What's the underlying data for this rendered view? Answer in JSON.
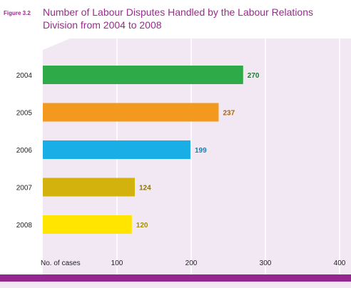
{
  "figure_label": "Figure 3.2",
  "title": "Number of Labour Disputes Handled by the Labour Relations Division from 2004 to 2008",
  "chart_data": {
    "type": "bar",
    "orientation": "horizontal",
    "title": "Number of Labour Disputes Handled by the Labour Relations Division from 2004 to 2008",
    "xlabel": "No. of cases",
    "ylabel": "",
    "xlim": [
      0,
      400
    ],
    "xticks": [
      100,
      200,
      300,
      400
    ],
    "grid": true,
    "categories": [
      "2004",
      "2005",
      "2006",
      "2007",
      "2008"
    ],
    "values": [
      270,
      237,
      199,
      124,
      120
    ],
    "bar_colors": [
      "#2eab48",
      "#f39a1e",
      "#1aaee6",
      "#d4b20e",
      "#ffe500"
    ],
    "label_colors": [
      "#1f7a33",
      "#a8660f",
      "#1a7fb0",
      "#8a7408",
      "#a89000"
    ],
    "background": "#f1e8f3",
    "gridline_color": "#ffffff",
    "accent": "#9a2a8c"
  }
}
